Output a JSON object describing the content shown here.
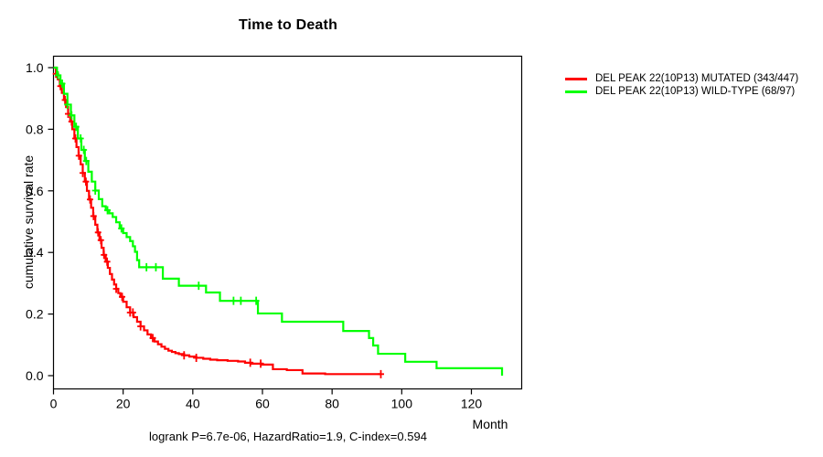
{
  "chart_data": {
    "type": "line",
    "subtype": "kaplan-meier-step-survival",
    "title": "Time to Death",
    "xlabel": "Month",
    "ylabel": "cumulative survival rate",
    "caption": "logrank P=6.7e-06, HazardRatio=1.9, C-index=0.594",
    "xlim": [
      0,
      134
    ],
    "ylim": [
      0.0,
      1.0
    ],
    "x_ticks": [
      0,
      20,
      40,
      60,
      80,
      100,
      120
    ],
    "y_ticks": [
      0.0,
      0.2,
      0.4,
      0.6,
      0.8,
      1.0
    ],
    "grid": false,
    "legend_position": "top-right-outside",
    "axis_color": "#000000",
    "background_color": "#ffffff",
    "series": [
      {
        "name": "DEL PEAK 22(10P13) MUTATED (343/447)",
        "color": "#ff0000",
        "points": [
          [
            0,
            1.0
          ],
          [
            0.7,
            0.98
          ],
          [
            1.2,
            0.962
          ],
          [
            1.8,
            0.94
          ],
          [
            2.4,
            0.918
          ],
          [
            3,
            0.895
          ],
          [
            3.6,
            0.872
          ],
          [
            4.2,
            0.85
          ],
          [
            4.8,
            0.825
          ],
          [
            5.4,
            0.8
          ],
          [
            6,
            0.77
          ],
          [
            6.6,
            0.742
          ],
          [
            7.2,
            0.714
          ],
          [
            7.8,
            0.686
          ],
          [
            8.4,
            0.658
          ],
          [
            9,
            0.63
          ],
          [
            9.6,
            0.6
          ],
          [
            10.2,
            0.572
          ],
          [
            10.8,
            0.545
          ],
          [
            11.4,
            0.518
          ],
          [
            12,
            0.49
          ],
          [
            12.6,
            0.465
          ],
          [
            13.2,
            0.44
          ],
          [
            13.8,
            0.415
          ],
          [
            14.4,
            0.392
          ],
          [
            15,
            0.37
          ],
          [
            15.6,
            0.35
          ],
          [
            16.2,
            0.33
          ],
          [
            16.8,
            0.312
          ],
          [
            17.4,
            0.296
          ],
          [
            18,
            0.282
          ],
          [
            18.6,
            0.268
          ],
          [
            19.2,
            0.256
          ],
          [
            20,
            0.24
          ],
          [
            21,
            0.222
          ],
          [
            22,
            0.205
          ],
          [
            23,
            0.19
          ],
          [
            24,
            0.175
          ],
          [
            25,
            0.16
          ],
          [
            26,
            0.147
          ],
          [
            27,
            0.134
          ],
          [
            28,
            0.122
          ],
          [
            29,
            0.111
          ],
          [
            30,
            0.102
          ],
          [
            31,
            0.094
          ],
          [
            32,
            0.087
          ],
          [
            33,
            0.081
          ],
          [
            34,
            0.077
          ],
          [
            35,
            0.073
          ],
          [
            36,
            0.07
          ],
          [
            37.5,
            0.066
          ],
          [
            39,
            0.062
          ],
          [
            41,
            0.058
          ],
          [
            43,
            0.055
          ],
          [
            45,
            0.052
          ],
          [
            47,
            0.05
          ],
          [
            50,
            0.048
          ],
          [
            53,
            0.046
          ],
          [
            55,
            0.042
          ],
          [
            57,
            0.039
          ],
          [
            60,
            0.036
          ],
          [
            63,
            0.021
          ],
          [
            67,
            0.018
          ],
          [
            71.5,
            0.007
          ],
          [
            78,
            0.005
          ],
          [
            94,
            0.005
          ]
        ],
        "censor_marks_months": [
          0.7,
          2,
          3.3,
          4.2,
          5.2,
          6.3,
          7.3,
          8.4,
          9.3,
          10.5,
          11.5,
          12.8,
          13.6,
          14.5,
          15.4,
          18,
          19.7,
          22,
          22.8,
          25,
          28.5,
          37.5,
          41,
          56.5,
          59.5,
          94
        ]
      },
      {
        "name": "DEL PEAK 22(10P13) WILD-TYPE (68/97)",
        "color": "#00ff00",
        "points": [
          [
            0,
            1.0
          ],
          [
            1,
            0.975
          ],
          [
            2,
            0.948
          ],
          [
            3,
            0.915
          ],
          [
            4,
            0.88
          ],
          [
            5,
            0.845
          ],
          [
            6,
            0.808
          ],
          [
            7,
            0.77
          ],
          [
            8,
            0.733
          ],
          [
            9,
            0.697
          ],
          [
            10,
            0.662
          ],
          [
            11,
            0.63
          ],
          [
            12,
            0.601
          ],
          [
            13,
            0.573
          ],
          [
            14,
            0.55
          ],
          [
            15,
            0.537
          ],
          [
            16,
            0.527
          ],
          [
            17,
            0.515
          ],
          [
            18,
            0.498
          ],
          [
            19,
            0.478
          ],
          [
            20,
            0.463
          ],
          [
            21,
            0.45
          ],
          [
            22,
            0.437
          ],
          [
            22.8,
            0.42
          ],
          [
            23.4,
            0.402
          ],
          [
            24,
            0.375
          ],
          [
            24.6,
            0.352
          ],
          [
            31.4,
            0.315
          ],
          [
            36,
            0.292
          ],
          [
            43.8,
            0.27
          ],
          [
            47.8,
            0.243
          ],
          [
            58.7,
            0.202
          ],
          [
            65.6,
            0.175
          ],
          [
            83.2,
            0.145
          ],
          [
            90.6,
            0.122
          ],
          [
            91.8,
            0.098
          ],
          [
            93.2,
            0.071
          ],
          [
            101,
            0.045
          ],
          [
            110,
            0.024
          ],
          [
            128.8,
            0.0
          ]
        ],
        "censor_marks_months": [
          1.3,
          2.5,
          4,
          5.2,
          6.5,
          7.8,
          8.7,
          9.4,
          12,
          15.5,
          19.5,
          26.7,
          29.4,
          41.7,
          51.7,
          53.8,
          58.2
        ]
      }
    ]
  }
}
